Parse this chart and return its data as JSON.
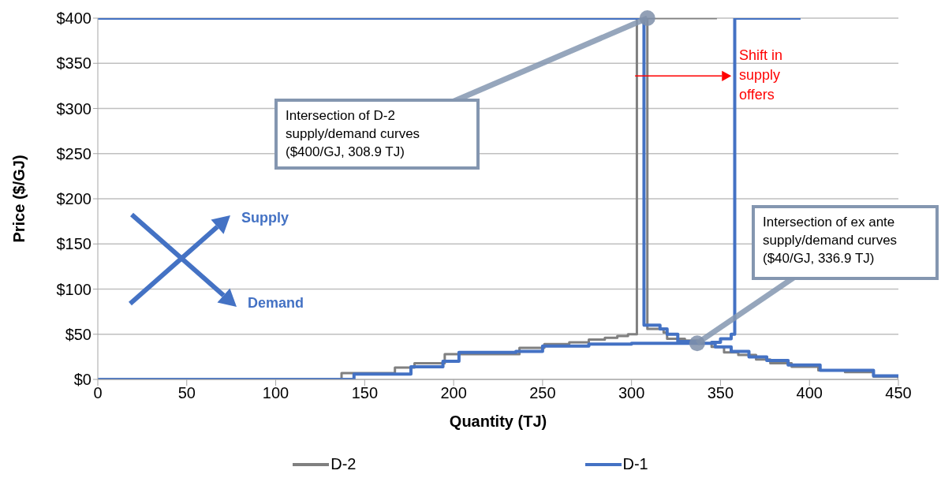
{
  "chart_data": {
    "type": "step",
    "xlabel": "Quantity (TJ)",
    "ylabel": "Price ($/GJ)",
    "xlim": [
      0,
      450
    ],
    "xticks": [
      0,
      50,
      100,
      150,
      200,
      250,
      300,
      350,
      400,
      450
    ],
    "ylim": [
      0,
      400
    ],
    "yticks": [
      {
        "value": 0,
        "label": "$0"
      },
      {
        "value": 50,
        "label": "$50"
      },
      {
        "value": 100,
        "label": "$100"
      },
      {
        "value": 150,
        "label": "$150"
      },
      {
        "value": 200,
        "label": "$200"
      },
      {
        "value": 250,
        "label": "$250"
      },
      {
        "value": 300,
        "label": "$300"
      },
      {
        "value": 350,
        "label": "$350"
      },
      {
        "value": 400,
        "label": "$400"
      }
    ],
    "grid": "y",
    "legend": "bottom",
    "marker": "none",
    "line_style": "solid",
    "series": [
      {
        "name": "D-2",
        "color": "#808080",
        "x": [
          0,
          137,
          167,
          178,
          195,
          237,
          251,
          265,
          276,
          285,
          292,
          298,
          303,
          348,
          null,
          0,
          308.9,
          318,
          320,
          330,
          337,
          345,
          352,
          360,
          370,
          378,
          390,
          405,
          420,
          436,
          450
        ],
        "values": [
          0,
          7,
          13,
          18,
          28,
          35,
          39,
          41,
          44,
          46,
          48,
          50,
          400,
          400,
          null,
          400,
          56,
          52,
          45,
          43,
          40,
          36,
          30,
          27,
          22,
          18,
          14,
          10,
          8,
          3,
          1
        ]
      },
      {
        "name": "D-1",
        "color": "#4472c4",
        "x": [
          0,
          144,
          176,
          194,
          203,
          235,
          250,
          276,
          300,
          345,
          350,
          356,
          358,
          395,
          null,
          0,
          307,
          316,
          320,
          326,
          338,
          347,
          356,
          366,
          376,
          388,
          406,
          436,
          450
        ],
        "values": [
          0,
          6,
          14,
          20,
          30,
          31,
          37,
          39,
          40,
          41,
          45,
          50,
          400,
          400,
          null,
          400,
          60,
          56,
          50,
          42,
          40,
          36,
          31,
          25,
          21,
          16,
          10,
          4,
          3
        ]
      }
    ],
    "annotations": [
      {
        "text": "Intersection of D-2 supply/demand curves ($400/GJ, 308.9 TJ)",
        "x": 308.9,
        "y": 400
      },
      {
        "text": "Intersection of ex ante supply/demand curves ($40/GJ, 336.9 TJ)",
        "x": 336.9,
        "y": 40
      },
      {
        "text": "Shift in supply offers",
        "x": 357,
        "y": 336
      },
      "Supply",
      "Demand"
    ]
  }
}
